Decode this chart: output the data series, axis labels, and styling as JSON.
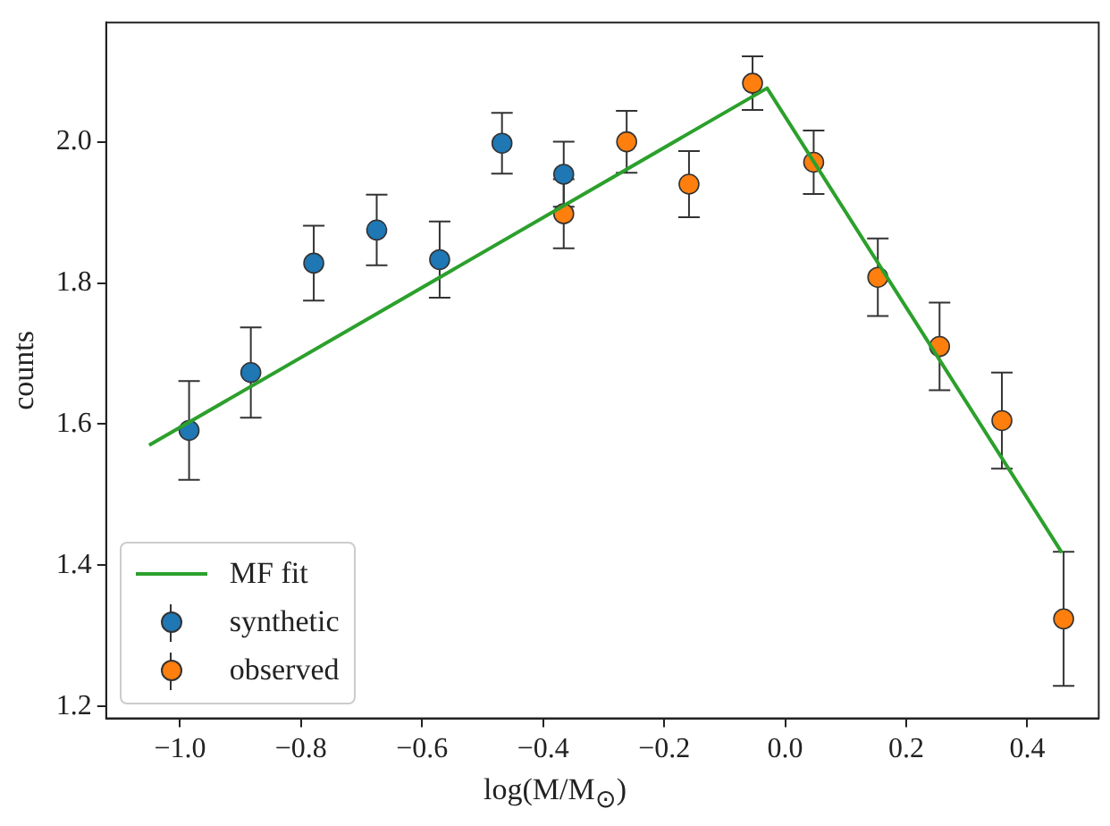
{
  "chart_data": {
    "type": "scatter",
    "xlabel": "log(M/M$_{⊙}$)",
    "ylabel": "counts",
    "xlim": [
      -1.122,
      0.518
    ],
    "ylim": [
      1.183,
      2.169
    ],
    "xticks": [
      {
        "value": -1,
        "label": "−1.0"
      },
      {
        "value": -0.8,
        "label": "−0.8"
      },
      {
        "value": -0.6,
        "label": "−0.6"
      },
      {
        "value": -0.4,
        "label": "−0.4"
      },
      {
        "value": -0.2,
        "label": "−0.2"
      },
      {
        "value": 0,
        "label": "0.0"
      },
      {
        "value": 0.2,
        "label": "0.2"
      },
      {
        "value": 0.4,
        "label": "0.4"
      }
    ],
    "yticks": [
      {
        "value": 1.2,
        "label": "1.2"
      },
      {
        "value": 1.4,
        "label": "1.4"
      },
      {
        "value": 1.6,
        "label": "1.6"
      },
      {
        "value": 1.8,
        "label": "1.8"
      },
      {
        "value": 2,
        "label": "2.0"
      }
    ],
    "grid": false,
    "legend": "bottom left",
    "series": [
      {
        "name": "MF fit",
        "type": "line",
        "marker": "none",
        "color": "#2ca02c",
        "x": [
          -1.051,
          -0.03,
          0.457
        ],
        "values": [
          1.57,
          2.076,
          1.418
        ]
      },
      {
        "name": "synthetic",
        "marker": "circle",
        "color": "#1f77b4",
        "x": [
          -0.985,
          -0.883,
          -0.779,
          -0.675,
          -0.571,
          -0.468,
          -0.366
        ],
        "values": [
          1.591,
          1.673,
          1.828,
          1.875,
          1.833,
          1.998,
          1.954
        ],
        "errors": [
          0.07,
          0.064,
          0.053,
          0.05,
          0.054,
          0.043,
          0.046
        ]
      },
      {
        "name": "observed",
        "marker": "circle",
        "color": "#ff7f0e",
        "x": [
          -0.366,
          -0.262,
          -0.159,
          -0.054,
          0.047,
          0.153,
          0.255,
          0.358,
          0.46
        ],
        "values": [
          1.898,
          2.0,
          1.94,
          2.083,
          1.971,
          1.808,
          1.71,
          1.605,
          1.324
        ],
        "errors": [
          0.049,
          0.044,
          0.047,
          0.038,
          0.045,
          0.055,
          0.062,
          0.068,
          0.095
        ]
      }
    ]
  }
}
